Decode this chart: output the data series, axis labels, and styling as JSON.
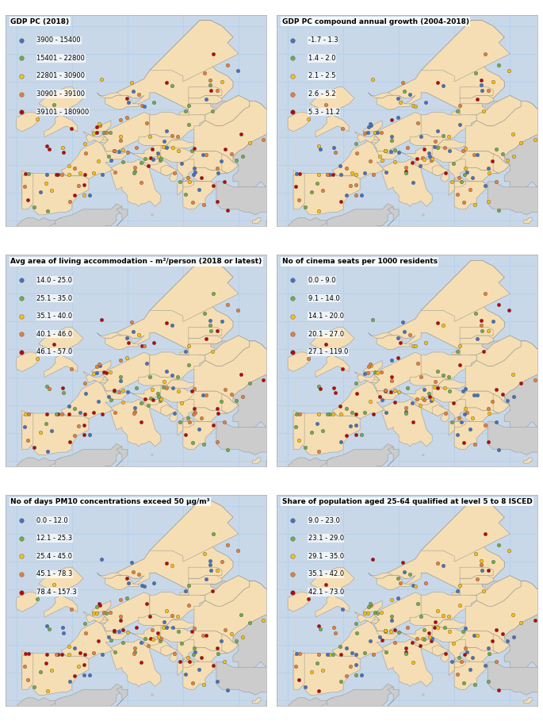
{
  "panels": [
    {
      "title": "GDP PC (2018)",
      "title_fontsize": 9,
      "legend_entries": [
        {
          "label": "3900 - 15400",
          "color": "#4472C4"
        },
        {
          "label": "15401 - 22800",
          "color": "#70AD47"
        },
        {
          "label": "22801 - 30900",
          "color": "#FFC000"
        },
        {
          "label": "30901 - 39100",
          "color": "#ED7D31"
        },
        {
          "label": "39101 - 180900",
          "color": "#C00000"
        }
      ]
    },
    {
      "title": "GDP PC compound annual growth (2004-2018)",
      "title_fontsize": 9,
      "legend_entries": [
        {
          "label": "-1.7 - 1.3",
          "color": "#4472C4"
        },
        {
          "label": "1.4 - 2.0",
          "color": "#70AD47"
        },
        {
          "label": "2.1 - 2.5",
          "color": "#FFC000"
        },
        {
          "label": "2.6 - 5.2",
          "color": "#ED7D31"
        },
        {
          "label": "5.3 - 11.2",
          "color": "#C00000"
        }
      ]
    },
    {
      "title": "Avg area of living accommodation - m²/person (2018 or latest)",
      "title_fontsize": 9,
      "legend_entries": [
        {
          "label": "14.0 - 25.0",
          "color": "#4472C4"
        },
        {
          "label": "25.1 - 35.0",
          "color": "#70AD47"
        },
        {
          "label": "35.1 - 40.0",
          "color": "#FFC000"
        },
        {
          "label": "40.1 - 46.0",
          "color": "#ED7D31"
        },
        {
          "label": "46.1 - 57.0",
          "color": "#C00000"
        }
      ]
    },
    {
      "title": "No of cinema seats per 1000 residents",
      "title_fontsize": 9,
      "legend_entries": [
        {
          "label": "0.0 - 9.0",
          "color": "#4472C4"
        },
        {
          "label": "9.1 - 14.0",
          "color": "#70AD47"
        },
        {
          "label": "14.1 - 20.0",
          "color": "#FFC000"
        },
        {
          "label": "20.1 - 27.0",
          "color": "#ED7D31"
        },
        {
          "label": "27.1 - 119.0",
          "color": "#C00000"
        }
      ]
    },
    {
      "title": "No of days PM10 concentrations exceed 50 μg/m³",
      "title_fontsize": 9,
      "legend_entries": [
        {
          "label": "0.0 - 12.0",
          "color": "#4472C4"
        },
        {
          "label": "12.1 - 25.3",
          "color": "#70AD47"
        },
        {
          "label": "25.4 - 45.0",
          "color": "#FFC000"
        },
        {
          "label": "45.1 - 78.3",
          "color": "#ED7D31"
        },
        {
          "label": "78.4 - 157.3",
          "color": "#C00000"
        }
      ]
    },
    {
      "title": "Share of population aged 25-64 qualified at level 5 to 8 ISCED",
      "title_fontsize": 9,
      "legend_entries": [
        {
          "label": "9.0 - 23.0",
          "color": "#4472C4"
        },
        {
          "label": "23.1 - 29.0",
          "color": "#70AD47"
        },
        {
          "label": "29.1 - 35.0",
          "color": "#FFC000"
        },
        {
          "label": "35.1 - 42.0",
          "color": "#ED7D31"
        },
        {
          "label": "42.1 - 73.0",
          "color": "#C00000"
        }
      ]
    }
  ],
  "map_bg_eu": "#F5DEB3",
  "map_bg_sea": "#C8D8E8",
  "map_bg_noneu": "#CCCCCC",
  "border_color": "#888888",
  "dot_size": 18,
  "dot_edgewidth": 0.3,
  "dot_edgecolor": "#555555",
  "figure_bg": "#FFFFFF",
  "grid_color": "#AACCEE",
  "panel_border_color": "#AAAAAA"
}
